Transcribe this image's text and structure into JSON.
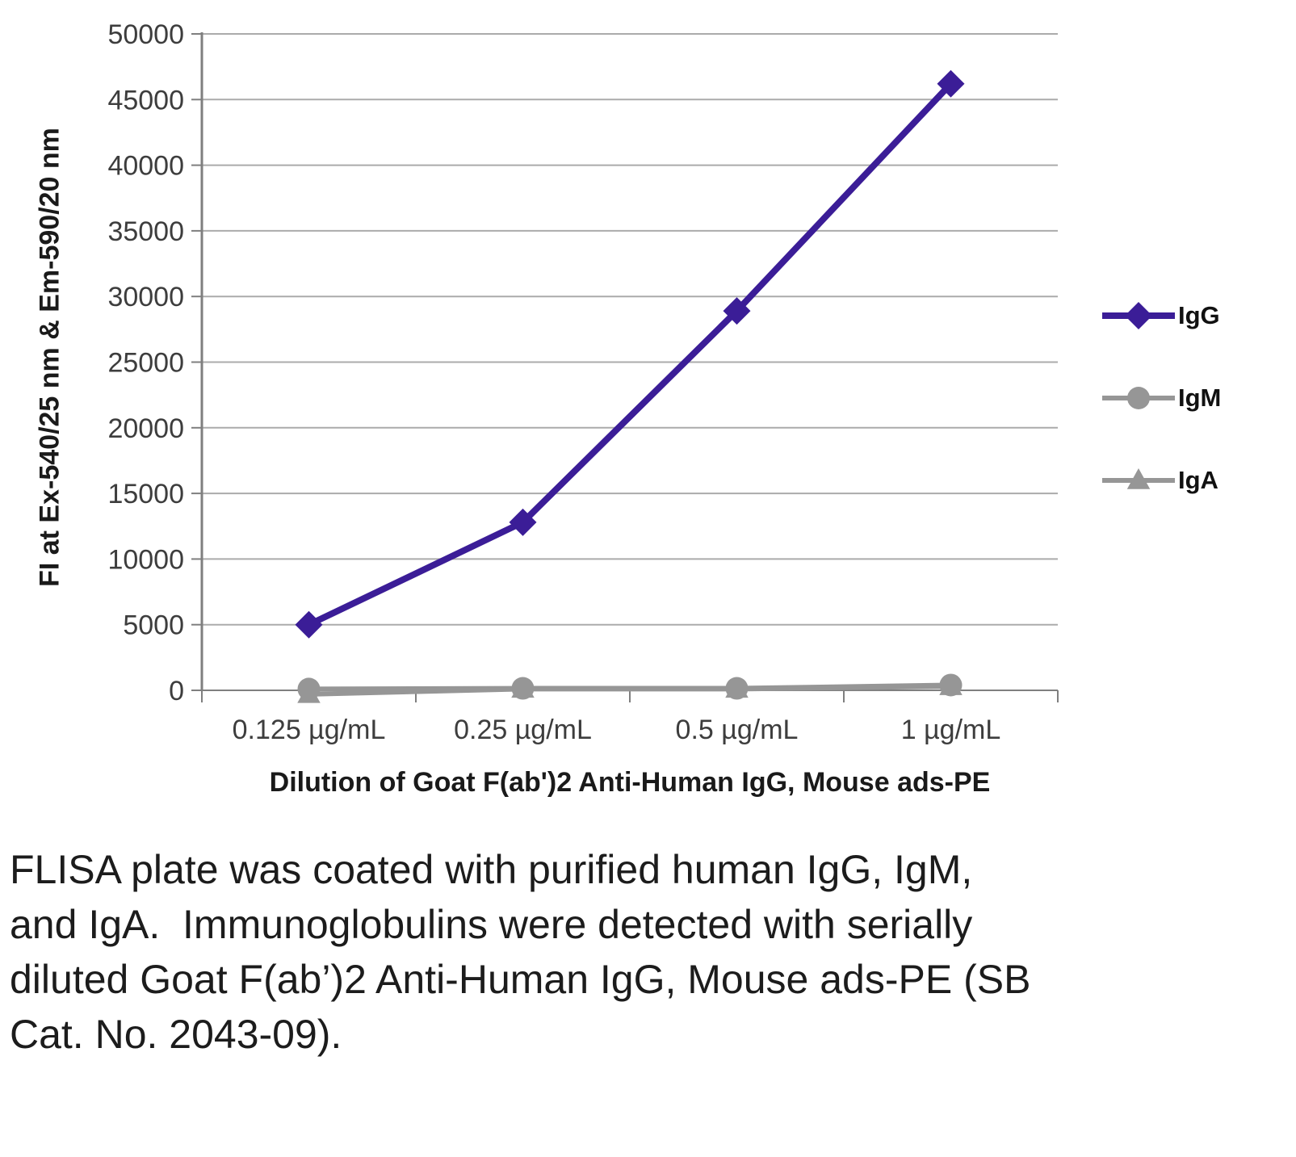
{
  "chart_data": {
    "type": "line",
    "title": "",
    "categories": [
      "0.125 µg/mL",
      "0.25 µg/mL",
      "0.5 µg/mL",
      "1 µg/mL"
    ],
    "series": [
      {
        "name": "IgG",
        "marker": "diamond",
        "color": "#3b1d97",
        "line_width": 8,
        "marker_size": 17,
        "values": [
          5000,
          12800,
          28900,
          46200
        ]
      },
      {
        "name": "IgM",
        "marker": "circle",
        "color": "#969696",
        "line_width": 6,
        "marker_size": 14,
        "values": [
          100,
          150,
          150,
          400
        ]
      },
      {
        "name": "IgA",
        "marker": "triangle",
        "color": "#969696",
        "line_width": 6,
        "marker_size": 15,
        "values": [
          -300,
          100,
          100,
          300
        ]
      }
    ],
    "xlabel": "Dilution of Goat F(ab')2 Anti-Human IgG, Mouse ads-PE",
    "ylabel": "FI at Ex-540/25 nm & Em-590/20 nm",
    "ylim": [
      0,
      50000
    ],
    "ytick_step": 5000,
    "grid": true,
    "legend_position": "right",
    "grid_color": "#ababab",
    "axis_color": "#7f7f7f"
  },
  "caption": "FLISA plate was coated with purified human IgG, IgM, and IgA.  Immunoglobulins were detected with serially diluted Goat F(ab’)2 Anti-Human IgG, Mouse ads-PE (SB Cat. No. 2043-09)."
}
